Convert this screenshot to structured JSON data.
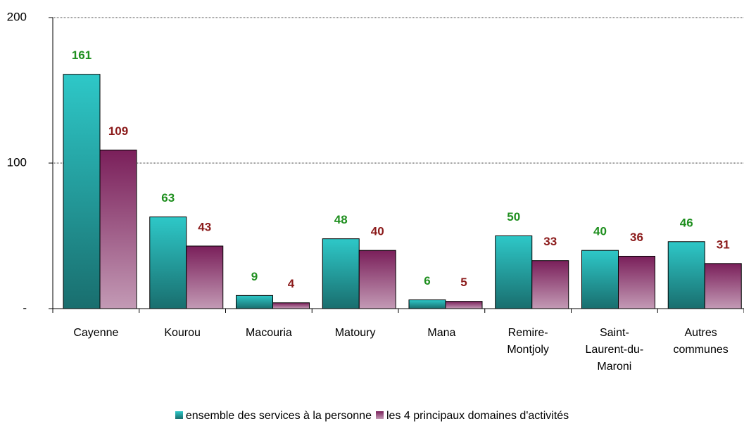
{
  "chart_data": {
    "type": "bar",
    "categories": [
      "Cayenne",
      "Kourou",
      "Macouria",
      "Matoury",
      "Mana",
      "Remire-Montjoly",
      "Saint-Laurent-du-Maroni",
      "Autres communes"
    ],
    "series": [
      {
        "name": "ensemble des services à la personne",
        "color": "#2ec8c8",
        "label_color": "#1f8f1f",
        "values": [
          161,
          63,
          9,
          48,
          6,
          50,
          40,
          46
        ]
      },
      {
        "name": "les 4 principaux domaines d'activités",
        "color": "#7a1f5a",
        "label_color": "#8b1a1a",
        "values": [
          109,
          43,
          4,
          40,
          5,
          33,
          36,
          31
        ]
      }
    ],
    "ylim": [
      0,
      200
    ],
    "yticks": [
      {
        "value": 0,
        "label": "-"
      },
      100,
      200
    ],
    "grid": true,
    "legend": "bottom"
  }
}
